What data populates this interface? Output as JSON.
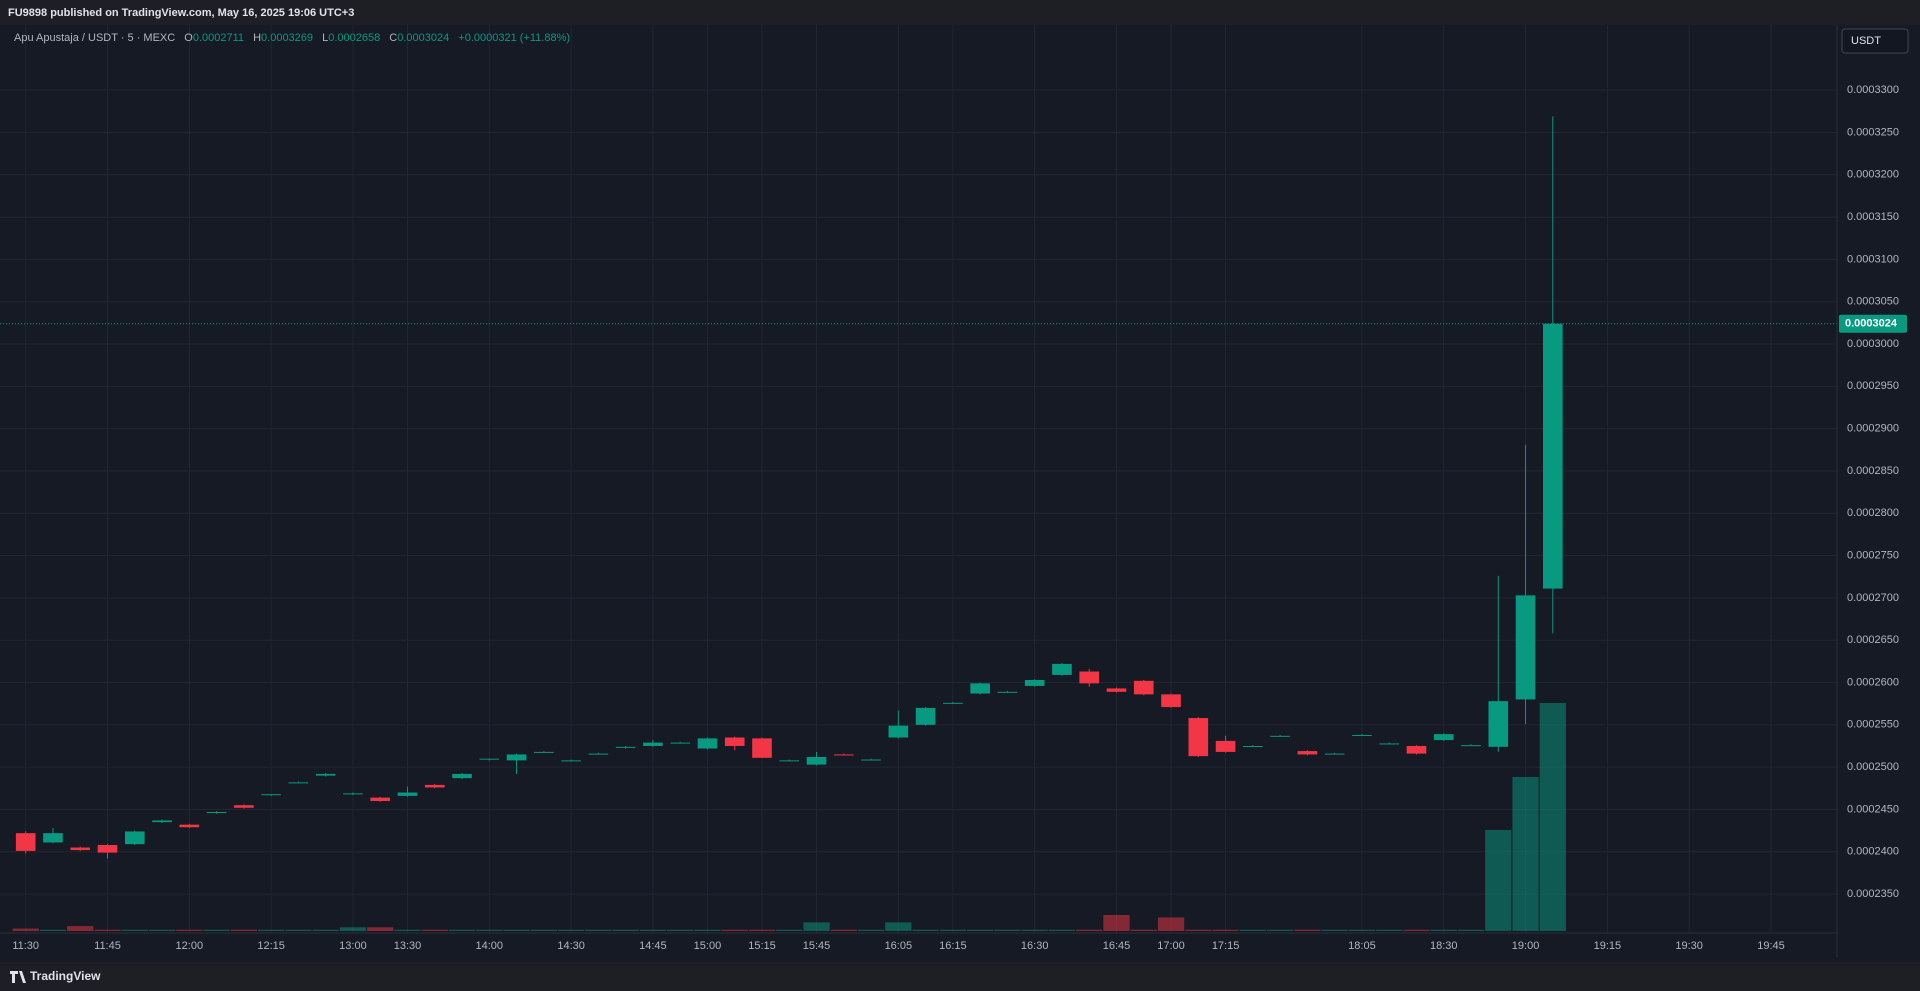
{
  "header": {
    "title": "FU9898 published on TradingView.com, May 16, 2025 19:06 UTC+3"
  },
  "legend": {
    "symbol": "Apu Apustaja / USDT · 5 · MEXC",
    "labels": [
      "O",
      "H",
      "L",
      "C"
    ],
    "change": "+0.0000321 (+11.88%)"
  },
  "currency_button": "USDT",
  "footer": {
    "logo": "TradingView"
  },
  "chart_data": {
    "type": "candlestick",
    "up_color": "#089981",
    "down_color": "#f23645",
    "grid": true,
    "categories": [
      "11:30",
      null,
      null,
      "11:45",
      null,
      null,
      "12:00",
      null,
      null,
      "12:15",
      null,
      null,
      "13:00",
      null,
      "13:30",
      null,
      null,
      "14:00",
      null,
      null,
      "14:30",
      null,
      null,
      "14:45",
      null,
      "15:00",
      null,
      "15:15",
      null,
      "15:45",
      null,
      null,
      "16:05",
      null,
      "16:15",
      null,
      null,
      "16:30",
      null,
      null,
      "16:45",
      null,
      "17:00",
      null,
      "17:15",
      null,
      null,
      null,
      null,
      "18:05",
      null,
      null,
      "18:30",
      null,
      null,
      "19:00",
      null,
      null,
      "19:15",
      null,
      null,
      "19:30",
      null,
      null,
      "19:45"
    ],
    "open": [
      0.0002422,
      0.0002411,
      0.0002405,
      0.0002408,
      0.0002409,
      0.0002435,
      0.0002432,
      0.0002446,
      0.0002455,
      0.0002467,
      0.0002481,
      0.000249,
      0.0002468,
      0.0002464,
      0.0002466,
      0.0002479,
      0.0002487,
      0.0002509,
      0.0002508,
      0.0002518,
      0.0002508,
      0.0002516,
      0.0002523,
      0.0002525,
      0.0002529,
      0.0002522,
      0.0002535,
      0.0002534,
      0.0002508,
      0.0002503,
      0.0002515,
      0.0002509,
      0.0002535,
      0.000255,
      0.0002576,
      0.0002587,
      0.0002589,
      0.0002596,
      0.0002609,
      0.0002613,
      0.0002593,
      0.0002602,
      0.0002586,
      0.0002558,
      0.0002531,
      0.0002525,
      0.0002537,
      0.0002519,
      0.0002516,
      0.0002538,
      0.0002528,
      0.0002525,
      0.0002532,
      0.0002526,
      0.0002524,
      0.000258,
      0.0002711,
      null,
      null,
      null,
      null,
      null,
      null,
      null,
      null
    ],
    "high": [
      0.0002424,
      0.0002428,
      0.0002406,
      0.0002409,
      0.0002425,
      0.0002438,
      0.0002433,
      0.0002448,
      0.0002456,
      0.0002468,
      0.0002483,
      0.0002493,
      0.000247,
      0.0002465,
      0.0002477,
      0.000248,
      0.0002493,
      0.000251,
      0.0002516,
      0.0002519,
      0.0002509,
      0.0002517,
      0.0002525,
      0.0002532,
      0.000253,
      0.0002535,
      0.0002536,
      0.0002535,
      0.0002509,
      0.0002518,
      0.0002516,
      0.000251,
      0.0002567,
      0.0002571,
      0.0002577,
      0.00026,
      0.000259,
      0.0002604,
      0.0002623,
      0.0002616,
      0.0002594,
      0.0002603,
      0.0002587,
      0.0002559,
      0.0002537,
      0.0002526,
      0.0002538,
      0.000252,
      0.0002517,
      0.0002539,
      0.0002529,
      0.0002526,
      0.000254,
      0.0002527,
      0.0002726,
      0.0002881,
      0.0003269,
      null,
      null,
      null,
      null,
      null,
      null,
      null,
      null
    ],
    "low": [
      0.0002398,
      0.000241,
      0.0002401,
      0.0002392,
      0.0002408,
      0.0002434,
      0.0002428,
      0.0002445,
      0.0002451,
      0.0002466,
      0.0002481,
      0.0002489,
      0.0002467,
      0.0002459,
      0.0002465,
      0.0002475,
      0.0002486,
      0.0002508,
      0.0002492,
      0.0002517,
      0.0002507,
      0.0002515,
      0.0002522,
      0.0002524,
      0.0002528,
      0.0002521,
      0.000252,
      0.0002511,
      0.0002507,
      0.0002502,
      0.0002514,
      0.0002508,
      0.0002534,
      0.0002549,
      0.0002575,
      0.0002586,
      0.0002588,
      0.0002595,
      0.0002608,
      0.0002595,
      0.0002588,
      0.0002585,
      0.000257,
      0.0002512,
      0.0002517,
      0.0002524,
      0.0002536,
      0.0002514,
      0.0002515,
      0.0002537,
      0.0002527,
      0.0002515,
      0.0002531,
      0.0002525,
      0.0002518,
      0.0002551,
      0.0002658,
      null,
      null,
      null,
      null,
      null,
      null,
      null,
      null
    ],
    "close": [
      0.0002401,
      0.0002422,
      0.0002402,
      0.0002399,
      0.0002424,
      0.0002437,
      0.0002429,
      0.0002447,
      0.0002452,
      0.0002468,
      0.0002482,
      0.0002492,
      0.0002469,
      0.000246,
      0.000247,
      0.0002476,
      0.0002492,
      0.000251,
      0.0002515,
      0.0002518,
      0.0002508,
      0.0002516,
      0.0002524,
      0.0002529,
      0.0002529,
      0.0002534,
      0.0002525,
      0.0002511,
      0.0002508,
      0.0002512,
      0.0002514,
      0.0002509,
      0.0002549,
      0.000257,
      0.0002576,
      0.0002599,
      0.0002589,
      0.0002603,
      0.0002622,
      0.0002599,
      0.0002589,
      0.0002586,
      0.0002571,
      0.0002513,
      0.0002518,
      0.0002525,
      0.0002537,
      0.0002515,
      0.0002516,
      0.0002538,
      0.0002528,
      0.0002516,
      0.0002539,
      0.0002526,
      0.0002578,
      0.0002703,
      0.0003024,
      null,
      null,
      null,
      null,
      null,
      null,
      null,
      null
    ],
    "volume": [
      2,
      1,
      4,
      1,
      1,
      1,
      1,
      1,
      1,
      1,
      1,
      1,
      3,
      3,
      1,
      1,
      1,
      1,
      1,
      1,
      1,
      1,
      1,
      1,
      1,
      1,
      1,
      1,
      1,
      7,
      1,
      1,
      7,
      1,
      1,
      1,
      1,
      1,
      1,
      1,
      13,
      1,
      11,
      1,
      1,
      1,
      1,
      1,
      1,
      1,
      1,
      1,
      1,
      1,
      82,
      125,
      185,
      null,
      null,
      null,
      null,
      null,
      null,
      null,
      null
    ],
    "ylim": [
      0.0002304,
      0.0003377
    ],
    "yticks": [
      {
        "value": 0.000235,
        "label": "0.0002350"
      },
      {
        "value": 0.00024,
        "label": "0.0002400"
      },
      {
        "value": 0.000245,
        "label": "0.0002450"
      },
      {
        "value": 0.00025,
        "label": "0.0002500"
      },
      {
        "value": 0.000255,
        "label": "0.0002550"
      },
      {
        "value": 0.00026,
        "label": "0.0002600"
      },
      {
        "value": 0.000265,
        "label": "0.0002650"
      },
      {
        "value": 0.00027,
        "label": "0.0002700"
      },
      {
        "value": 0.000275,
        "label": "0.0002750"
      },
      {
        "value": 0.00028,
        "label": "0.0002800"
      },
      {
        "value": 0.000285,
        "label": "0.0002850"
      },
      {
        "value": 0.00029,
        "label": "0.0002900"
      },
      {
        "value": 0.000295,
        "label": "0.0002950"
      },
      {
        "value": 0.0003,
        "label": "0.0003000"
      },
      {
        "value": 0.000305,
        "label": "0.0003050"
      },
      {
        "value": 0.00031,
        "label": "0.0003100"
      },
      {
        "value": 0.000315,
        "label": "0.0003150"
      },
      {
        "value": 0.00032,
        "label": "0.0003200"
      },
      {
        "value": 0.000325,
        "label": "0.0003250"
      },
      {
        "value": 0.00033,
        "label": "0.0003300"
      }
    ]
  }
}
